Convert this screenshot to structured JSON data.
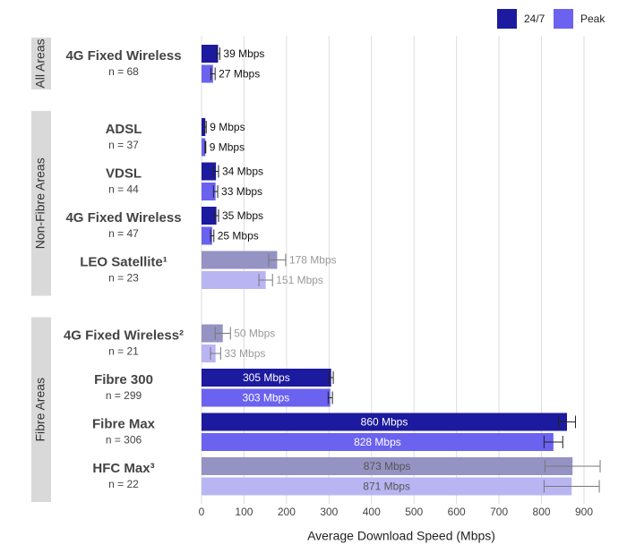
{
  "chart_data": {
    "type": "bar",
    "orientation": "horizontal",
    "x_label": "Average Download Speed (Mbps)",
    "categories": [
      "4G Fixed Wireless",
      "ADSL",
      "VDSL",
      "4G Fixed Wireless",
      "LEO Satellite¹",
      "4G Fixed Wireless²",
      "Fibre 300",
      "Fibre Max",
      "HFC Max³"
    ],
    "category_notes": [
      "n = 68",
      "n = 37",
      "n = 44",
      "n = 47",
      "n = 23",
      "n = 21",
      "n = 299",
      "n = 306",
      "n = 22"
    ],
    "category_groups": [
      "All Areas",
      "Non-Fibre Areas",
      "Non-Fibre Areas",
      "Non-Fibre Areas",
      "Non-Fibre Areas",
      "Fibre Areas",
      "Fibre Areas",
      "Fibre Areas",
      "Fibre Areas"
    ],
    "faded": [
      false,
      false,
      false,
      false,
      true,
      true,
      false,
      false,
      true
    ],
    "series": [
      {
        "name": "24/7",
        "color": "#1c1a9e",
        "faded_color": "#9493c3",
        "values": [
          39,
          9,
          34,
          35,
          178,
          50,
          305,
          860,
          873
        ],
        "errors": [
          4,
          2,
          6,
          5,
          20,
          18,
          5,
          20,
          65
        ],
        "value_labels": [
          "39 Mbps",
          "9 Mbps",
          "34 Mbps",
          "35 Mbps",
          "178 Mbps",
          "50 Mbps",
          "305 Mbps",
          "860 Mbps",
          "873 Mbps"
        ]
      },
      {
        "name": "Peak",
        "color": "#6b62f0",
        "faded_color": "#b9b5f3",
        "values": [
          27,
          9,
          33,
          25,
          151,
          33,
          303,
          828,
          871
        ],
        "errors": [
          5,
          1,
          5,
          4,
          16,
          12,
          5,
          22,
          65
        ],
        "value_labels": [
          "27 Mbps",
          "9 Mbps",
          "33 Mbps",
          "25 Mbps",
          "151 Mbps",
          "33 Mbps",
          "303 Mbps",
          "828 Mbps",
          "871 Mbps"
        ]
      }
    ],
    "xlim": [
      0,
      900
    ],
    "xticks": [
      0,
      100,
      200,
      300,
      400,
      500,
      600,
      700,
      800,
      900
    ],
    "grid": true,
    "legend": "top-right"
  }
}
